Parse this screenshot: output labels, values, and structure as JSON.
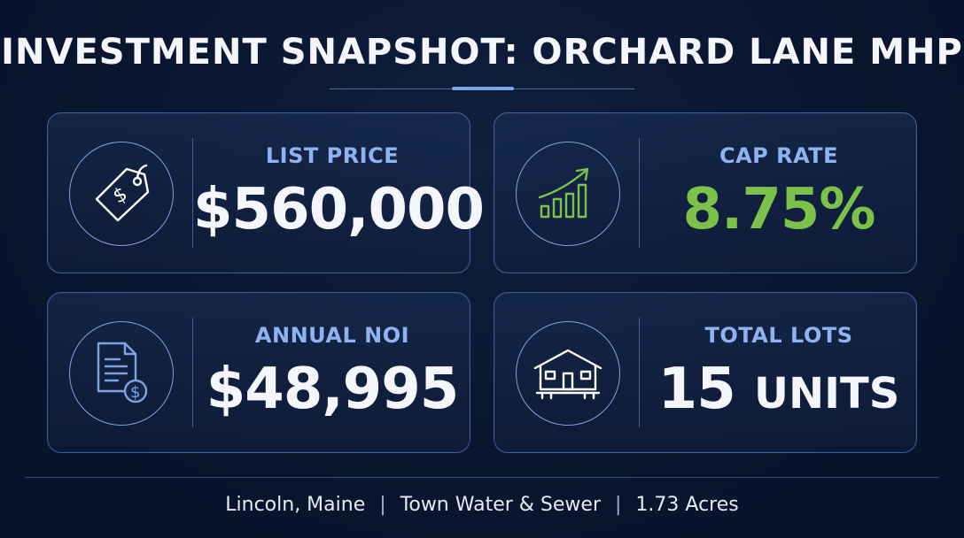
{
  "title": "INVESTMENT SNAPSHOT: ORCHARD LANE MHP",
  "cards": [
    {
      "label": "LIST PRICE",
      "value": "$560,000",
      "icon": "price-tag-icon"
    },
    {
      "label": "CAP RATE",
      "value": "8.75%",
      "icon": "growth-chart-icon",
      "value_color": "#7cc24a"
    },
    {
      "label": "ANNUAL NOI",
      "value": "$48,995",
      "icon": "document-dollar-icon"
    },
    {
      "label": "TOTAL LOTS",
      "value_number": "15",
      "value_unit": "UNITS",
      "icon": "house-icon"
    }
  ],
  "footer": {
    "location": "Lincoln, Maine",
    "utilities": "Town Water & Sewer",
    "acreage": "1.73 Acres"
  },
  "colors": {
    "background": "#0a1730",
    "card_border": "#3f5f96",
    "label": "#8fb3f0",
    "accent_green": "#7cc24a"
  }
}
